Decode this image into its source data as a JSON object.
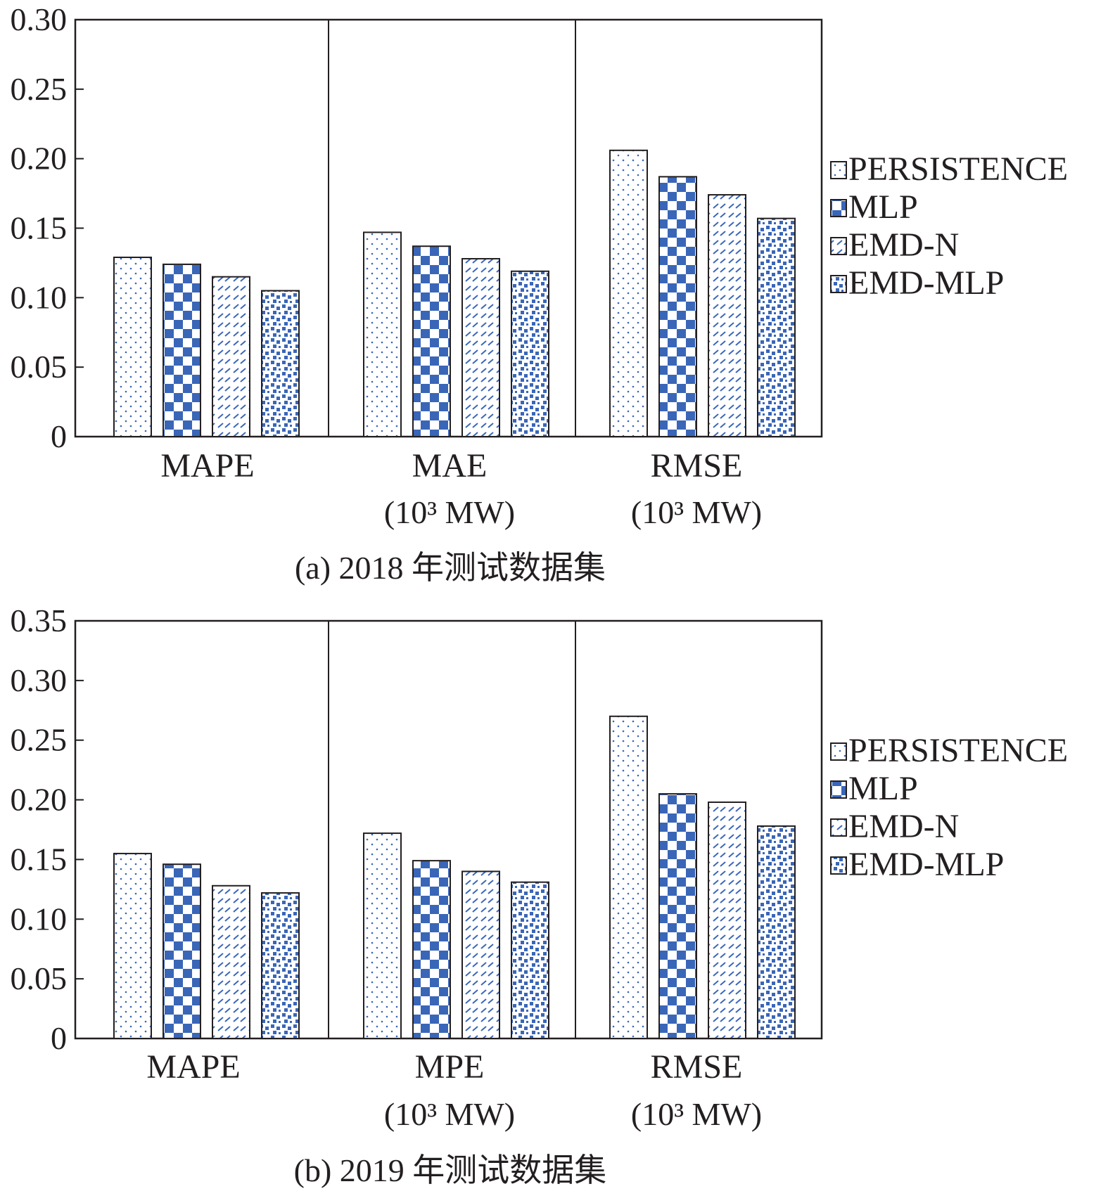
{
  "colors": {
    "bar_fill": "#3a66b8",
    "frame": "#231f20",
    "background": "#ffffff"
  },
  "legend": [
    "PERSISTENCE",
    "MLP",
    "EMD-N",
    "EMD-MLP"
  ],
  "chart_data": [
    {
      "type": "bar",
      "caption": "(a) 2018 年测试数据集",
      "ylim": [
        0,
        0.3
      ],
      "yticks": [
        "0",
        "0.05",
        "0.10",
        "0.15",
        "0.20",
        "0.25",
        "0.30"
      ],
      "grid": false,
      "legend_placement": "right",
      "categories": [
        {
          "label": "MAPE",
          "unit": ""
        },
        {
          "label": "MAE",
          "unit": "(10³ MW)"
        },
        {
          "label": "RMSE",
          "unit": "(10³ MW)"
        }
      ],
      "series": [
        {
          "name": "PERSISTENCE",
          "pattern": "dots",
          "values": [
            0.129,
            0.147,
            0.206
          ]
        },
        {
          "name": "MLP",
          "pattern": "checker",
          "values": [
            0.124,
            0.137,
            0.187
          ]
        },
        {
          "name": "EMD-N",
          "pattern": "dashes",
          "values": [
            0.115,
            0.128,
            0.174
          ]
        },
        {
          "name": "EMD-MLP",
          "pattern": "blocks",
          "values": [
            0.105,
            0.119,
            0.157
          ]
        }
      ]
    },
    {
      "type": "bar",
      "caption": "(b) 2019 年测试数据集",
      "ylim": [
        0,
        0.35
      ],
      "yticks": [
        "0",
        "0.05",
        "0.10",
        "0.15",
        "0.20",
        "0.25",
        "0.30",
        "0.35"
      ],
      "grid": false,
      "legend_placement": "right",
      "categories": [
        {
          "label": "MAPE",
          "unit": ""
        },
        {
          "label": "MPE",
          "unit": "(10³ MW)"
        },
        {
          "label": "RMSE",
          "unit": "(10³ MW)"
        }
      ],
      "series": [
        {
          "name": "PERSISTENCE",
          "pattern": "dots",
          "values": [
            0.155,
            0.172,
            0.27
          ]
        },
        {
          "name": "MLP",
          "pattern": "checker",
          "values": [
            0.146,
            0.149,
            0.205
          ]
        },
        {
          "name": "EMD-N",
          "pattern": "dashes",
          "values": [
            0.128,
            0.14,
            0.198
          ]
        },
        {
          "name": "EMD-MLP",
          "pattern": "blocks",
          "values": [
            0.122,
            0.131,
            0.178
          ]
        }
      ]
    }
  ]
}
